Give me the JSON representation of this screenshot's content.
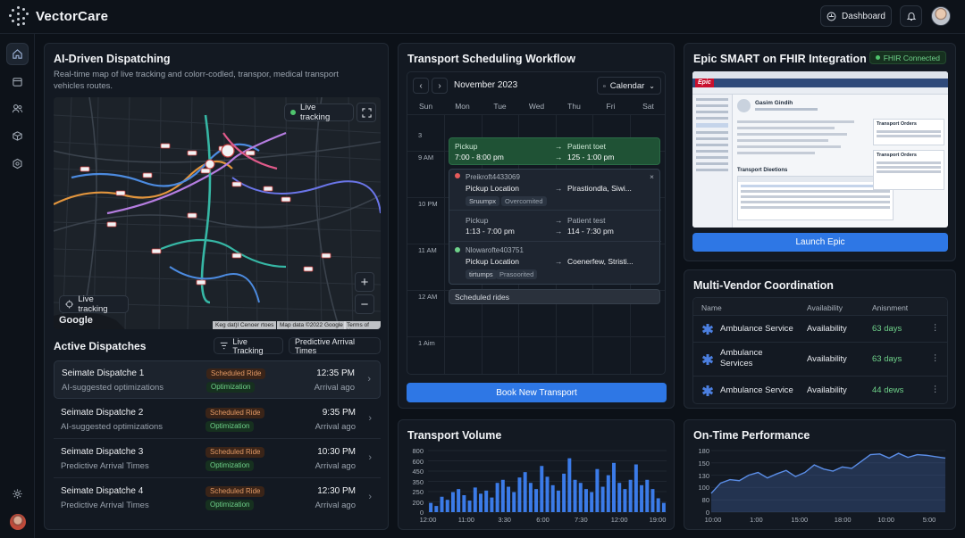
{
  "app": {
    "name": "VectorCare"
  },
  "topbar": {
    "dashboard_label": "Dashboard"
  },
  "dispatching": {
    "title": "AI-Driven Dispatching",
    "description": "Real-time map of live tracking and colorr-codled, transpor, medical transport vehicles routes.",
    "map": {
      "live_tracking_pill": "Live tracking",
      "live_tracking_btn": "Live tracking",
      "google": "Google",
      "attribution1": "Keg dat)l Cenoer rtoes",
      "attribution2": "Map data ©2022 Google",
      "attribution3": "Terms of Use"
    }
  },
  "active": {
    "title": "Active Dispatches",
    "filter1": "Live Tracking",
    "filter2": "Predictive Arrival Times",
    "rows": [
      {
        "name": "Seimate Dispatche 1",
        "sub": "AI-suggested optimizations",
        "badge1": "Scheduled Ride",
        "badge2": "Optimization",
        "time": "12:35 PM",
        "ago": "Arrival ago"
      },
      {
        "name": "Seimate Dispatche 2",
        "sub": "AI-suggested optimizations",
        "badge1": "Scheduled Ride",
        "badge2": "Optimization",
        "time": "9:35 PM",
        "ago": "Arrival ago"
      },
      {
        "name": "Seimate Dispatche 3",
        "sub": "Predictive Arrival Times",
        "badge1": "Scheduled Ride",
        "badge2": "Optimization",
        "time": "10:30 PM",
        "ago": "Arrival ago"
      },
      {
        "name": "Seimate Dispatche 4",
        "sub": "Predictive Arrival Times",
        "badge1": "Scheduled Ride",
        "badge2": "Optimization",
        "time": "12:30 PM",
        "ago": "Arrival ago"
      }
    ]
  },
  "scheduling": {
    "title": "Transport Scheduling Workflow",
    "month": "November 2023",
    "view": "Calendar",
    "days": [
      "Sun",
      "Mon",
      "Tue",
      "Wed",
      "Thu",
      "Fri",
      "Sat"
    ],
    "times": [
      "3",
      "9 AM",
      "10 PM",
      "11 AM",
      "12 AM",
      "1 Aim"
    ],
    "event1": {
      "pickup": "Pickup",
      "pickup_time": "7:00 - 8:00 pm",
      "dest": "Patient toet",
      "dest_time": "125 - 1:00 pm"
    },
    "popup": {
      "a_id": "Preikroft4433069",
      "a_label": "Pickup Location",
      "a_dest": "Pirastiondla, Siwi...",
      "a_tag1": "Sruumpx",
      "a_tag2": "Overcomited",
      "b_pickup": "Pickup",
      "b_time": "1:13 - 7:00 pm",
      "b_dest": "Patient test",
      "b_dest_time": "114 - 7:30 pm",
      "c_id": "Nlowarofte403751",
      "c_label": "Pickup Location",
      "c_dest": "Coenerfew, Stristi...",
      "c_tag1": "tirtumps",
      "c_tag2": "Prasoorited"
    },
    "scheduled": "Scheduled rides",
    "book_label": "Book New Transport"
  },
  "epic": {
    "title": "Epic SMART on FHIR Integration",
    "badge": "FHIR Connected",
    "shot": {
      "logo": "Epic",
      "patient": "Gasim Gindih",
      "transport_orders": "Transport Orders",
      "transport_orders2": "Transport Orders",
      "transport_directions": "Transport Dieetions"
    },
    "launch_label": "Launch Epic"
  },
  "vendors": {
    "title": "Multi-Vendor Coordination",
    "headers": [
      "Name",
      "Availability",
      "Anisnment"
    ],
    "rows": [
      {
        "name": "Ambulance Service",
        "avail": "Availability",
        "days": "63 days"
      },
      {
        "name": "Ambulance Services",
        "avail": "Availability",
        "days": "63 days"
      },
      {
        "name": "Ambulance Service",
        "avail": "Availability",
        "days": "44 dews"
      }
    ]
  },
  "volume": {
    "title": "Transport Volume",
    "chart_data": {
      "type": "bar",
      "y_ticks": [
        "800",
        "600",
        "450",
        "350",
        "250",
        "200",
        "0"
      ],
      "x_ticks": [
        "12:00",
        "11:00",
        "3:30",
        "6:00",
        "7:30",
        "12:00",
        "19:00"
      ],
      "ylim": [
        0,
        800
      ],
      "color": "#3b7be8",
      "values": [
        120,
        80,
        200,
        160,
        260,
        300,
        220,
        150,
        320,
        240,
        280,
        190,
        380,
        420,
        330,
        260,
        450,
        520,
        380,
        300,
        600,
        460,
        350,
        280,
        500,
        700,
        420,
        380,
        300,
        260,
        560,
        330,
        480,
        640,
        380,
        300,
        420,
        620,
        350,
        420,
        300,
        180,
        120
      ]
    }
  },
  "ontime": {
    "title": "On-Time Performance",
    "chart_data": {
      "type": "area",
      "y_ticks": [
        "180",
        "150",
        "130",
        "100",
        "80",
        "0"
      ],
      "x_ticks": [
        "10:00",
        "1:00",
        "15:00",
        "18:00",
        "10:00",
        "5:00"
      ],
      "ylim": [
        0,
        180
      ],
      "color": "#5b8ee8",
      "values": [
        55,
        85,
        95,
        92,
        108,
        116,
        100,
        112,
        122,
        104,
        116,
        138,
        126,
        120,
        132,
        128,
        148,
        168,
        170,
        158,
        172,
        160,
        168,
        166,
        162,
        158
      ]
    }
  }
}
